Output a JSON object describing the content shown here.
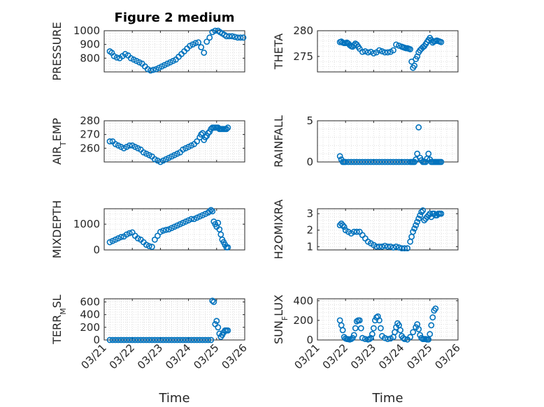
{
  "chart_data": [
    {
      "type": "scatter",
      "title": "Figure 2 medium",
      "ylabel": "PRESSURE",
      "ylim": [
        700,
        1000
      ],
      "yticks": [
        800,
        900,
        1000
      ],
      "xlim": [
        0,
        5
      ],
      "marker_color": "#0072BD",
      "grid": true,
      "x": [
        0.2,
        0.27,
        0.35,
        0.45,
        0.55,
        0.65,
        0.75,
        0.85,
        0.95,
        1.05,
        1.15,
        1.25,
        1.35,
        1.45,
        1.55,
        1.65,
        1.75,
        1.85,
        1.95,
        2.05,
        2.15,
        2.25,
        2.35,
        2.45,
        2.55,
        2.65,
        2.75,
        2.85,
        2.95,
        3.05,
        3.15,
        3.25,
        3.35,
        3.45,
        3.55,
        3.65,
        3.75,
        3.85,
        3.95,
        4.05,
        4.12,
        4.2,
        4.28,
        4.35,
        4.45,
        4.55,
        4.65,
        4.75,
        4.85,
        4.95
      ],
      "y": [
        850,
        840,
        815,
        805,
        800,
        815,
        830,
        820,
        800,
        790,
        780,
        770,
        760,
        740,
        720,
        710,
        715,
        720,
        730,
        740,
        750,
        760,
        770,
        780,
        790,
        810,
        830,
        850,
        870,
        890,
        900,
        910,
        915,
        880,
        840,
        920,
        950,
        990,
        1000,
        1000,
        990,
        980,
        970,
        960,
        960,
        960,
        955,
        950,
        950,
        950
      ]
    },
    {
      "type": "scatter",
      "title": "",
      "ylabel": "THETA",
      "ylim": [
        272,
        280
      ],
      "yticks": [
        275,
        280
      ],
      "xlim": [
        0,
        5
      ],
      "marker_color": "#0072BD",
      "grid": true,
      "x": [
        0.8,
        0.85,
        0.9,
        0.95,
        1.0,
        1.05,
        1.1,
        1.15,
        1.2,
        1.25,
        1.3,
        1.35,
        1.4,
        1.45,
        1.5,
        1.6,
        1.7,
        1.8,
        1.9,
        2.0,
        2.1,
        2.2,
        2.3,
        2.4,
        2.5,
        2.6,
        2.7,
        2.8,
        2.9,
        3.0,
        3.05,
        3.1,
        3.15,
        3.2,
        3.25,
        3.3,
        3.35,
        3.4,
        3.45,
        3.5,
        3.55,
        3.6,
        3.65,
        3.7,
        3.75,
        3.8,
        3.85,
        3.9,
        3.95,
        4.0,
        4.05,
        4.1,
        4.15,
        4.2,
        4.25,
        4.3,
        4.35,
        4.4
      ],
      "y": [
        277.8,
        277.9,
        277.7,
        277.6,
        277.6,
        277.7,
        277.5,
        277.2,
        277.0,
        276.9,
        277.2,
        277.5,
        277.3,
        276.9,
        276.5,
        275.9,
        276.0,
        275.8,
        275.9,
        275.6,
        275.8,
        276.2,
        276.0,
        275.8,
        275.8,
        275.9,
        276.2,
        277.3,
        277.1,
        276.9,
        276.8,
        276.7,
        276.6,
        276.6,
        276.5,
        276.4,
        274.0,
        272.8,
        273.2,
        274.5,
        275.0,
        275.8,
        276.2,
        276.5,
        276.8,
        277.0,
        277.4,
        277.8,
        278.2,
        278.6,
        278.2,
        277.7,
        277.9,
        278.0,
        278.1,
        278.0,
        277.9,
        277.8
      ]
    },
    {
      "type": "scatter",
      "title": "",
      "ylabel": "AIR_TEMP",
      "ylim": [
        250,
        280
      ],
      "yticks": [
        260,
        270,
        280
      ],
      "xlim": [
        0,
        5
      ],
      "marker_color": "#0072BD",
      "grid": true,
      "x": [
        0.2,
        0.3,
        0.4,
        0.5,
        0.6,
        0.7,
        0.8,
        0.9,
        1.0,
        1.1,
        1.2,
        1.3,
        1.4,
        1.5,
        1.6,
        1.7,
        1.8,
        1.9,
        2.0,
        2.1,
        2.2,
        2.3,
        2.4,
        2.5,
        2.6,
        2.7,
        2.8,
        2.9,
        3.0,
        3.1,
        3.2,
        3.3,
        3.4,
        3.45,
        3.5,
        3.55,
        3.6,
        3.65,
        3.7,
        3.75,
        3.8,
        3.85,
        3.9,
        3.95,
        4.0,
        4.05,
        4.1,
        4.15,
        4.2,
        4.25,
        4.3,
        4.35,
        4.4
      ],
      "y": [
        265,
        265,
        263,
        262,
        261,
        260,
        261,
        262,
        262,
        261,
        260,
        259,
        257,
        256,
        255,
        254,
        252,
        251,
        250,
        251,
        252,
        253,
        254,
        255,
        256,
        257,
        259,
        260,
        261,
        262,
        263,
        265,
        268,
        270,
        271,
        266,
        268,
        269,
        271,
        272,
        274,
        275,
        275,
        275,
        275,
        275,
        274,
        274,
        274,
        274,
        274,
        274,
        275
      ]
    },
    {
      "type": "scatter",
      "title": "",
      "ylabel": "RAINFALL",
      "ylim": [
        0,
        5
      ],
      "yticks": [
        0,
        5
      ],
      "xlim": [
        0,
        5
      ],
      "marker_color": "#0072BD",
      "grid": true,
      "x": [
        0.8,
        0.85,
        0.9,
        0.95,
        1.0,
        1.1,
        1.2,
        1.3,
        1.4,
        1.5,
        1.6,
        1.7,
        1.8,
        1.9,
        2.0,
        2.1,
        2.2,
        2.3,
        2.4,
        2.5,
        2.6,
        2.7,
        2.8,
        2.9,
        3.0,
        3.1,
        3.2,
        3.3,
        3.35,
        3.4,
        3.45,
        3.5,
        3.55,
        3.6,
        3.65,
        3.7,
        3.75,
        3.8,
        3.85,
        3.9,
        3.95,
        4.0,
        4.05,
        4.1,
        4.15,
        4.2,
        4.25,
        4.3,
        4.35,
        4.4
      ],
      "y": [
        0.7,
        0.3,
        0,
        0,
        0,
        0,
        0,
        0,
        0,
        0,
        0,
        0,
        0,
        0,
        0,
        0,
        0,
        0,
        0,
        0,
        0,
        0,
        0,
        0,
        0,
        0,
        0,
        0,
        0,
        0,
        0,
        0.3,
        1.0,
        4.2,
        0.5,
        0.2,
        0,
        0,
        0,
        0.4,
        1.0,
        0.3,
        0,
        0,
        0,
        0,
        0,
        0,
        0,
        0
      ]
    },
    {
      "type": "scatter",
      "title": "",
      "ylabel": "MIXDEPTH",
      "ylim": [
        0,
        1600
      ],
      "yticks": [
        0,
        1000
      ],
      "xlim": [
        0,
        5
      ],
      "marker_color": "#0072BD",
      "grid": true,
      "x": [
        0.2,
        0.3,
        0.4,
        0.5,
        0.6,
        0.7,
        0.8,
        0.9,
        1.0,
        1.1,
        1.2,
        1.3,
        1.4,
        1.5,
        1.6,
        1.7,
        1.8,
        1.9,
        2.0,
        2.1,
        2.2,
        2.3,
        2.4,
        2.5,
        2.6,
        2.7,
        2.8,
        2.9,
        3.0,
        3.1,
        3.2,
        3.3,
        3.4,
        3.5,
        3.6,
        3.7,
        3.75,
        3.8,
        3.85,
        3.9,
        3.95,
        4.0,
        4.05,
        4.1,
        4.15,
        4.2,
        4.25,
        4.3,
        4.35,
        4.4
      ],
      "y": [
        300,
        350,
        400,
        450,
        500,
        520,
        600,
        650,
        680,
        550,
        450,
        400,
        300,
        200,
        150,
        120,
        400,
        550,
        700,
        750,
        780,
        800,
        850,
        900,
        950,
        1000,
        1050,
        1100,
        1150,
        1200,
        1200,
        1250,
        1300,
        1350,
        1400,
        1450,
        1500,
        1550,
        1500,
        1100,
        1000,
        900,
        1050,
        800,
        600,
        400,
        300,
        200,
        100,
        100
      ]
    },
    {
      "type": "scatter",
      "title": "",
      "ylabel": "H2OMIXRA",
      "ylim": [
        0.8,
        3.3
      ],
      "yticks": [
        1,
        2,
        3
      ],
      "xlim": [
        0,
        5
      ],
      "marker_color": "#0072BD",
      "grid": true,
      "x": [
        0.8,
        0.85,
        0.9,
        0.95,
        1.0,
        1.1,
        1.2,
        1.3,
        1.4,
        1.5,
        1.6,
        1.7,
        1.8,
        1.9,
        2.0,
        2.1,
        2.2,
        2.3,
        2.4,
        2.5,
        2.6,
        2.7,
        2.8,
        2.9,
        3.0,
        3.1,
        3.2,
        3.3,
        3.35,
        3.4,
        3.45,
        3.5,
        3.55,
        3.6,
        3.65,
        3.7,
        3.75,
        3.8,
        3.85,
        3.9,
        3.95,
        4.0,
        4.05,
        4.1,
        4.15,
        4.2,
        4.25,
        4.3,
        4.35,
        4.4
      ],
      "y": [
        2.3,
        2.4,
        2.3,
        2.2,
        2.0,
        1.9,
        1.8,
        1.9,
        1.9,
        1.9,
        1.7,
        1.5,
        1.3,
        1.2,
        1.1,
        1.0,
        1.0,
        1.0,
        1.05,
        1.0,
        1.0,
        0.95,
        1.0,
        0.95,
        0.9,
        0.9,
        0.9,
        1.3,
        1.6,
        1.9,
        2.1,
        2.3,
        2.5,
        2.7,
        2.9,
        3.1,
        3.2,
        2.6,
        2.7,
        2.8,
        2.9,
        3.0,
        2.8,
        3.0,
        3.0,
        2.9,
        2.9,
        3.0,
        3.0,
        3.0
      ]
    },
    {
      "type": "scatter",
      "title": "",
      "ylabel": "TERR_MSL",
      "ylim": [
        0,
        650
      ],
      "yticks": [
        0,
        200,
        400,
        600
      ],
      "xlim": [
        0,
        5
      ],
      "marker_color": "#0072BD",
      "grid": true,
      "x": [
        0.2,
        0.3,
        0.4,
        0.5,
        0.6,
        0.7,
        0.8,
        0.9,
        1.0,
        1.1,
        1.2,
        1.3,
        1.4,
        1.5,
        1.6,
        1.7,
        1.8,
        1.9,
        2.0,
        2.1,
        2.2,
        2.3,
        2.4,
        2.5,
        2.6,
        2.7,
        2.8,
        2.9,
        3.0,
        3.1,
        3.2,
        3.3,
        3.4,
        3.5,
        3.6,
        3.7,
        3.8,
        3.85,
        3.9,
        3.95,
        4.0,
        4.05,
        4.1,
        4.15,
        4.2,
        4.25,
        4.3,
        4.35,
        4.4
      ],
      "y": [
        0,
        0,
        0,
        0,
        0,
        0,
        0,
        0,
        0,
        0,
        0,
        0,
        0,
        0,
        0,
        0,
        0,
        0,
        0,
        0,
        0,
        0,
        0,
        0,
        0,
        0,
        0,
        0,
        0,
        0,
        0,
        0,
        0,
        0,
        0,
        0,
        0,
        620,
        600,
        250,
        300,
        200,
        100,
        50,
        80,
        120,
        150,
        150,
        150
      ]
    },
    {
      "type": "scatter",
      "title": "",
      "ylabel": "SUN_FLUX",
      "ylim": [
        0,
        420
      ],
      "yticks": [
        0,
        200,
        400
      ],
      "xlim": [
        0,
        5
      ],
      "marker_color": "#0072BD",
      "grid": true,
      "x": [
        0.8,
        0.85,
        0.9,
        0.95,
        1.0,
        1.05,
        1.1,
        1.15,
        1.2,
        1.25,
        1.3,
        1.35,
        1.4,
        1.45,
        1.5,
        1.55,
        1.6,
        1.7,
        1.8,
        1.85,
        1.9,
        1.95,
        2.0,
        2.05,
        2.1,
        2.15,
        2.2,
        2.25,
        2.3,
        2.4,
        2.5,
        2.6,
        2.7,
        2.75,
        2.8,
        2.85,
        2.9,
        2.95,
        3.0,
        3.05,
        3.1,
        3.2,
        3.3,
        3.4,
        3.5,
        3.55,
        3.6,
        3.65,
        3.7,
        3.75,
        3.8,
        3.85,
        3.9,
        3.95,
        4.0,
        4.05,
        4.1,
        4.15,
        4.2
      ],
      "y": [
        200,
        150,
        100,
        30,
        15,
        10,
        8,
        5,
        10,
        20,
        50,
        120,
        190,
        200,
        200,
        120,
        20,
        10,
        5,
        10,
        20,
        60,
        120,
        200,
        230,
        240,
        200,
        120,
        40,
        20,
        10,
        15,
        30,
        80,
        130,
        170,
        150,
        100,
        40,
        20,
        10,
        5,
        30,
        80,
        130,
        160,
        110,
        50,
        20,
        10,
        10,
        10,
        5,
        5,
        60,
        150,
        230,
        300,
        320
      ]
    }
  ],
  "xticklabels": [
    "03/21",
    "03/22",
    "03/23",
    "03/24",
    "03/25",
    "03/26"
  ],
  "xlabel": "Time"
}
